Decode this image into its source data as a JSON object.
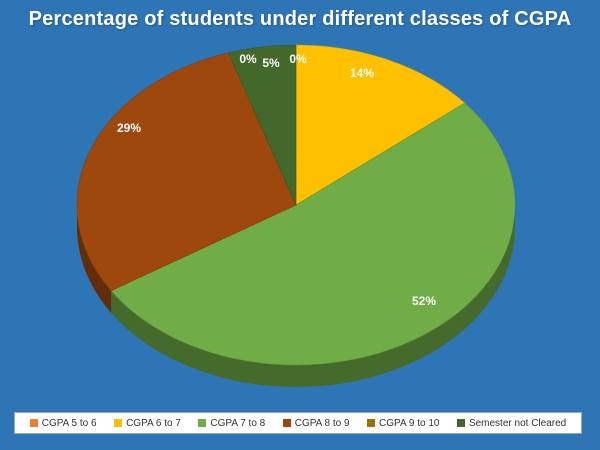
{
  "chart_data": {
    "type": "pie",
    "title": "Percentage of students under different classes of CGPA",
    "categories": [
      "CGPA 5 to 6",
      "CGPA 6 to 7",
      "CGPA 7 to 8",
      "CGPA 8 to 9",
      "CGPA 9 to 10",
      "Semester not Cleared"
    ],
    "values": [
      0,
      14,
      52,
      29,
      0,
      5
    ],
    "data_labels": [
      "0%",
      "14%",
      "52%",
      "29%",
      "0%",
      "5%"
    ],
    "colors": [
      "#ed7d31",
      "#ffc000",
      "#70ad47",
      "#9e480e",
      "#997300",
      "#43682b"
    ],
    "legend_position": "bottom",
    "style": "3d"
  }
}
